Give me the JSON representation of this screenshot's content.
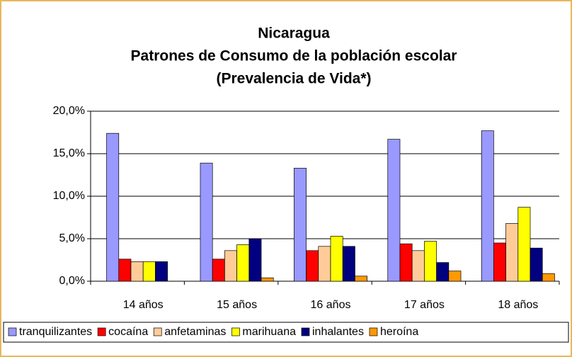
{
  "chart_data": {
    "type": "bar",
    "title": [
      "Nicaragua",
      "Patrones de Consumo de la población escolar",
      "(Prevalencia de Vida*)"
    ],
    "categories": [
      "14 años",
      "15 años",
      "16 años",
      "17 años",
      "18 años"
    ],
    "series": [
      {
        "name": "tranquilizantes",
        "color": "#9999ff",
        "values": [
          17.4,
          13.9,
          13.3,
          16.7,
          17.7
        ]
      },
      {
        "name": "cocaína",
        "color": "#ff0000",
        "values": [
          2.6,
          2.6,
          3.6,
          4.4,
          4.5
        ]
      },
      {
        "name": "anfetaminas",
        "color": "#ffcc99",
        "values": [
          2.3,
          3.6,
          4.1,
          3.6,
          6.8
        ]
      },
      {
        "name": "marihuana",
        "color": "#ffff00",
        "values": [
          2.3,
          4.3,
          5.3,
          4.7,
          8.7
        ]
      },
      {
        "name": "inhalantes",
        "color": "#000080",
        "values": [
          2.3,
          5.0,
          4.1,
          2.2,
          3.9
        ]
      },
      {
        "name": "heroína",
        "color": "#ff9900",
        "values": [
          0,
          0.4,
          0.6,
          1.2,
          0.9
        ]
      }
    ],
    "ylim": [
      0,
      20
    ],
    "yticks": [
      {
        "value": 0,
        "label": "0,0%"
      },
      {
        "value": 5,
        "label": "5,0%"
      },
      {
        "value": 10,
        "label": "10,0%"
      },
      {
        "value": 15,
        "label": "15,0%"
      },
      {
        "value": 20,
        "label": "20,0%"
      }
    ],
    "grid": true,
    "legend": "bottom"
  }
}
